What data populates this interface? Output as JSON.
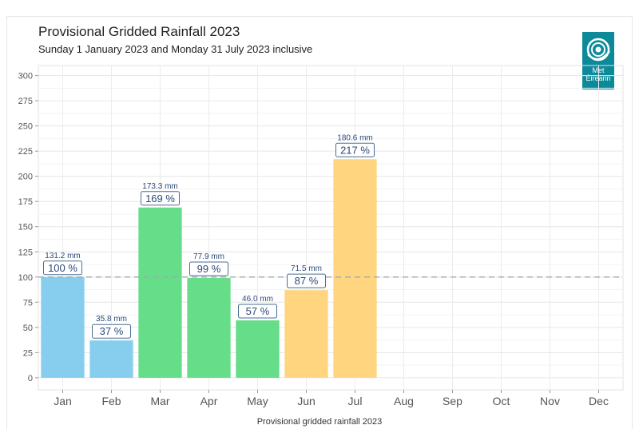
{
  "title": "Provisional Gridded Rainfall 2023",
  "subtitle": "Sunday 1 January 2023 and Monday 31 July 2023 inclusive",
  "caption": "Provisional gridded rainfall 2023",
  "logo": {
    "line1": "Met",
    "line2": "Éireann"
  },
  "colors": {
    "winter": "#87ceee",
    "spring": "#66dd88",
    "summer": "#ffd580",
    "reference_line": "#9aaab0",
    "label_text": "#2a4a7a"
  },
  "chart_data": {
    "type": "bar",
    "categories": [
      "Jan",
      "Feb",
      "Mar",
      "Apr",
      "May",
      "Jun",
      "Jul",
      "Aug",
      "Sep",
      "Oct",
      "Nov",
      "Dec"
    ],
    "values": [
      100,
      37,
      169,
      99,
      57,
      87,
      217,
      null,
      null,
      null,
      null,
      null
    ],
    "rainfall_mm": [
      "131.2 mm",
      "35.8 mm",
      "173.3 mm",
      "77.9 mm",
      "46.0 mm",
      "71.5 mm",
      "180.6 mm",
      null,
      null,
      null,
      null,
      null
    ],
    "percent_labels": [
      "100 %",
      "37 %",
      "169 %",
      "99 %",
      "57 %",
      "87 %",
      "217 %",
      null,
      null,
      null,
      null,
      null
    ],
    "season_colors": [
      "#87ceee",
      "#87ceee",
      "#66dd88",
      "#66dd88",
      "#66dd88",
      "#ffd580",
      "#ffd580",
      null,
      null,
      null,
      null,
      null
    ],
    "yticks": [
      0,
      25,
      50,
      75,
      100,
      125,
      150,
      175,
      200,
      225,
      250,
      275,
      300
    ],
    "ylim": [
      -12,
      310
    ],
    "reference_value": 100,
    "grid": true
  }
}
